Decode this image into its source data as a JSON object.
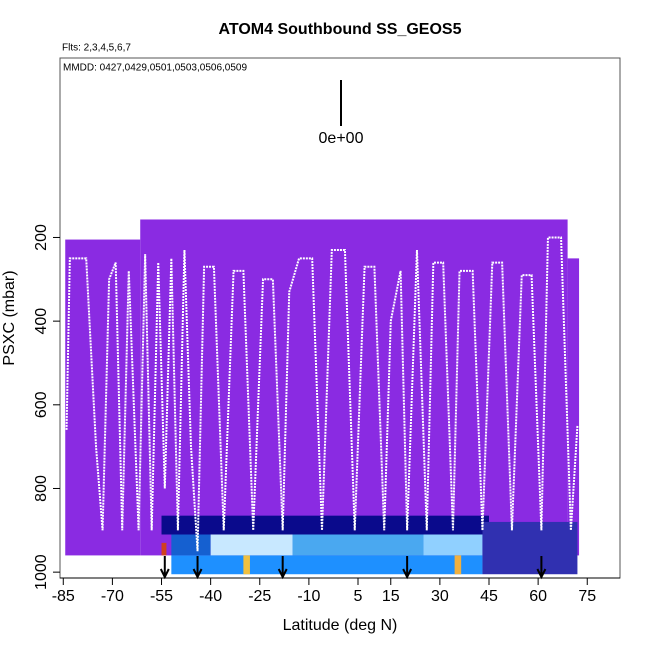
{
  "chart_data": {
    "type": "curtain",
    "title": "ATOM4 Southbound SS_GEOS5",
    "annotations": [
      "Flts: 2,3,4,5,6,7",
      "MMDD: 0427,0429,0501,0503,0506,0509"
    ],
    "colorbar_label": "0e+00",
    "x_label": "Latitude (deg N)",
    "y_label": "PSXC (mbar)",
    "xlim": [
      -86,
      85
    ],
    "ylim": [
      1014,
      -229
    ],
    "xticks": [
      -85,
      -70,
      -55,
      -40,
      -25,
      -10,
      5,
      15,
      30,
      45,
      60,
      75
    ],
    "yticks": [
      200,
      400,
      600,
      800,
      1000
    ],
    "cells": [
      {
        "lat": [
          -84.4,
          -61.5
        ],
        "p": [
          205,
          960
        ],
        "color": "#8a2be2"
      },
      {
        "lat": [
          -61.5,
          69
        ],
        "p": [
          157,
          960
        ],
        "color": "#8a2be2"
      },
      {
        "lat": [
          69,
          72.5
        ],
        "p": [
          250,
          960
        ],
        "color": "#8a2be2"
      },
      {
        "lat": [
          -55,
          45
        ],
        "p": [
          865,
          910
        ],
        "color": "#0a0a8c"
      },
      {
        "lat": [
          -52,
          -40
        ],
        "p": [
          910,
          960
        ],
        "color": "#1560d0"
      },
      {
        "lat": [
          -40,
          -15
        ],
        "p": [
          910,
          960
        ],
        "color": "#c8e8ff"
      },
      {
        "lat": [
          -15,
          25
        ],
        "p": [
          910,
          960
        ],
        "color": "#4aa8f0"
      },
      {
        "lat": [
          25,
          43
        ],
        "p": [
          910,
          960
        ],
        "color": "#90d0ff"
      },
      {
        "lat": [
          -52,
          43
        ],
        "p": [
          960,
          1005
        ],
        "color": "#1e90ff"
      },
      {
        "lat": [
          -30,
          -28
        ],
        "p": [
          960,
          1005
        ],
        "color": "#f0c040"
      },
      {
        "lat": [
          34.5,
          36.5
        ],
        "p": [
          960,
          1005
        ],
        "color": "#f0b040"
      },
      {
        "lat": [
          -55,
          -53.5
        ],
        "p": [
          930,
          960
        ],
        "color": "#d04020"
      },
      {
        "lat": [
          43,
          72
        ],
        "p": [
          880,
          1005
        ],
        "color": "#3030b0"
      }
    ],
    "track": {
      "color": "#ffffff",
      "x": [
        -84,
        -83,
        -78,
        -75,
        -73,
        -71,
        -69,
        -67,
        -65,
        -62,
        -60,
        -58,
        -56,
        -54,
        -52,
        -50,
        -48,
        -46,
        -44,
        -42,
        -39,
        -36,
        -33,
        -30,
        -27,
        -24,
        -21,
        -18,
        -16,
        -13,
        -9,
        -6,
        -3,
        1,
        4,
        7,
        10,
        13,
        15,
        18,
        20,
        23,
        26,
        28,
        31,
        34,
        36,
        40,
        43,
        46,
        49,
        52,
        55,
        58,
        61,
        63,
        67,
        70,
        72
      ],
      "y": [
        660,
        250,
        250,
        700,
        900,
        300,
        260,
        900,
        280,
        900,
        240,
        900,
        260,
        800,
        250,
        900,
        230,
        700,
        950,
        270,
        270,
        900,
        280,
        280,
        900,
        300,
        300,
        900,
        330,
        250,
        250,
        900,
        230,
        230,
        900,
        270,
        270,
        900,
        400,
        280,
        900,
        230,
        900,
        260,
        260,
        900,
        280,
        280,
        900,
        260,
        260,
        900,
        290,
        290,
        900,
        200,
        200,
        900,
        650
      ]
    },
    "arrows": [
      -54,
      -44,
      -18,
      20,
      61
    ]
  }
}
